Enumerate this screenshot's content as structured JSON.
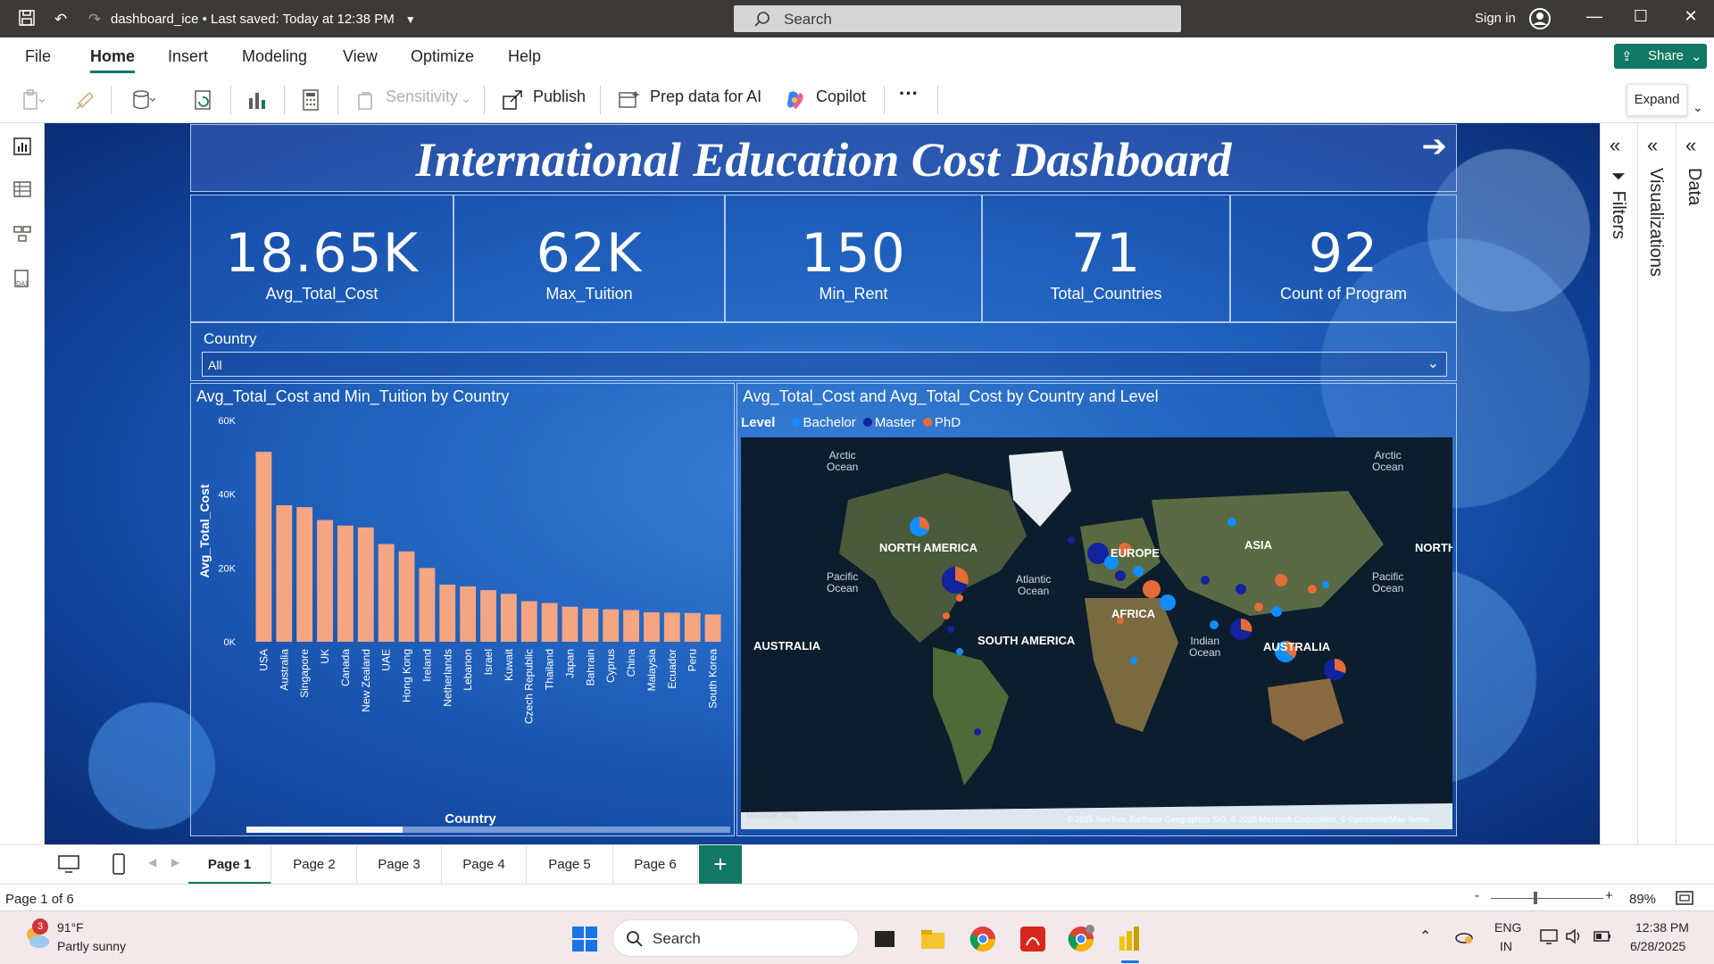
{
  "titlebar": {
    "doc_name": "dashboard_ice",
    "save_status": "Last saved: Today at 12:38 PM",
    "search_placeholder": "Search",
    "sign_in": "Sign in"
  },
  "menu": {
    "tabs": [
      "File",
      "Home",
      "Insert",
      "Modeling",
      "View",
      "Optimize",
      "Help"
    ],
    "active": "Home",
    "share": "Share"
  },
  "toolbar": {
    "sensitivity": "Sensitivity",
    "publish": "Publish",
    "prep_data": "Prep data for AI",
    "copilot": "Copilot",
    "more": "···",
    "expand_tooltip": "Expand"
  },
  "report": {
    "title": "International Education Cost Dashboard",
    "kpis": [
      {
        "value": "18.65K",
        "label": "Avg_Total_Cost"
      },
      {
        "value": "62K",
        "label": "Max_Tuition"
      },
      {
        "value": "150",
        "label": "Min_Rent"
      },
      {
        "value": "71",
        "label": "Total_Countries"
      },
      {
        "value": "92",
        "label": "Count of Program"
      }
    ],
    "slicer": {
      "label": "Country",
      "value": "All"
    },
    "bar_chart_title": "Avg_Total_Cost and Min_Tuition by Country",
    "map_title": "Avg_Total_Cost and Avg_Total_Cost by Country and Level",
    "map_legend": {
      "title": "Level",
      "items": [
        {
          "label": "Bachelor",
          "color": "#118dff"
        },
        {
          "label": "Master",
          "color": "#12239e"
        },
        {
          "label": "PhD",
          "color": "#e66c37"
        }
      ]
    },
    "map_labels": {
      "arctic_left": "Arctic\nOcean",
      "arctic_right": "Arctic\nOcean",
      "north_america": "NORTH AMERICA",
      "asia": "ASIA",
      "north_right": "NORTH",
      "europe": "EUROPE",
      "pacific_left": "Pacific\nOcean",
      "atlantic": "Atlantic\nOcean",
      "pacific_right": "Pacific\nOcean",
      "africa": "AFRICA",
      "australia_left": "AUSTRALIA",
      "south_america": "SOUTH AMERICA",
      "indian": "Indian\nOcean",
      "australia_right": "AUSTRALIA",
      "attribution": "© 2025 TomTom, Earthstar Geographics SIO, © 2025 Microsoft Corporation, © OpenStreetMap  Terms",
      "bing": "Microsoft Bing"
    }
  },
  "chart_data": {
    "type": "bar",
    "title": "Avg_Total_Cost and Min_Tuition by Country",
    "xlabel": "Country",
    "ylabel": "Avg_Total_Cost",
    "ylim": [
      0,
      60000
    ],
    "yticks": [
      "0K",
      "20K",
      "40K",
      "60K"
    ],
    "color": "#f4a582",
    "categories": [
      "USA",
      "Australia",
      "Singapore",
      "UK",
      "Canada",
      "New Zealand",
      "UAE",
      "Hong Kong",
      "Ireland",
      "Netherlands",
      "Lebanon",
      "Israel",
      "Kuwait",
      "Czech Republic",
      "Thailand",
      "Japan",
      "Bahrain",
      "Cyprus",
      "China",
      "Malaysia",
      "Ecuador",
      "Peru",
      "South Korea"
    ],
    "values": [
      51500,
      37000,
      36500,
      33000,
      31500,
      31000,
      26500,
      24500,
      20000,
      15500,
      15000,
      14000,
      13000,
      11000,
      10500,
      9500,
      9000,
      8800,
      8600,
      8000,
      7900,
      7800,
      7400
    ]
  },
  "pages": {
    "tabs": [
      "Page 1",
      "Page 2",
      "Page 3",
      "Page 4",
      "Page 5",
      "Page 6"
    ],
    "active": "Page 1"
  },
  "statusbar": {
    "page_info": "Page 1 of 6",
    "zoom": "89%"
  },
  "panes": {
    "filters": "Filters",
    "visualizations": "Visualizations",
    "data": "Data"
  },
  "taskbar": {
    "weather_temp": "91°F",
    "weather_desc": "Partly sunny",
    "weather_badge": "3",
    "search": "Search",
    "lang": "ENG",
    "region": "IN",
    "time": "12:38 PM",
    "date": "6/28/2025"
  }
}
